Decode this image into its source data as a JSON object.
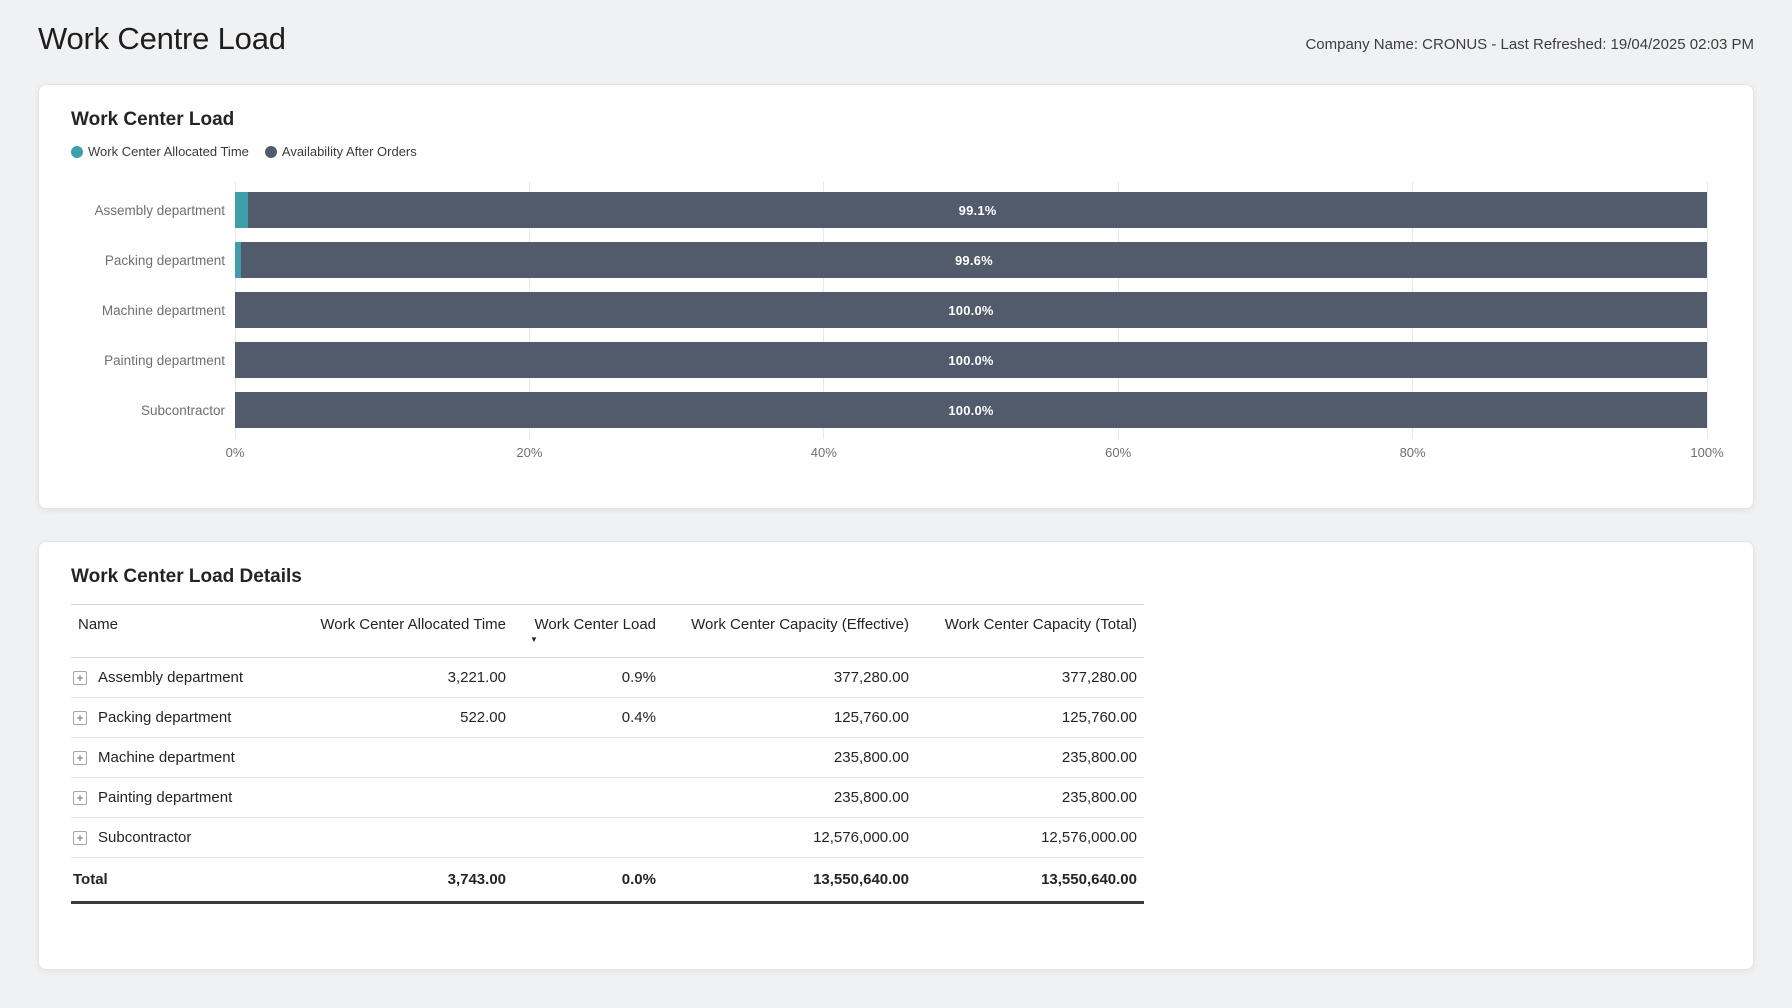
{
  "page": {
    "title": "Work Centre Load",
    "meta": "Company Name: CRONUS - Last Refreshed: 19/04/2025 02:03 PM"
  },
  "colors": {
    "allocated": "#3E9FAA",
    "availability": "#525B6B",
    "page_background": "#F0F1F3",
    "card_background": "#FFFFFF"
  },
  "chart_card": {
    "title": "Work Center Load",
    "legend": [
      {
        "label": "Work Center Allocated Time",
        "color": "#3E9FAA"
      },
      {
        "label": "Availability After Orders",
        "color": "#525B6B"
      }
    ]
  },
  "chart_data": {
    "type": "bar",
    "orientation": "horizontal",
    "stacked": true,
    "title": "Work Center Load",
    "categories": [
      "Assembly department",
      "Packing department",
      "Machine department",
      "Painting department",
      "Subcontractor"
    ],
    "series": [
      {
        "name": "Work Center Allocated Time",
        "color": "#3E9FAA",
        "values": [
          0.9,
          0.4,
          0.0,
          0.0,
          0.0
        ]
      },
      {
        "name": "Availability After Orders",
        "color": "#525B6B",
        "values": [
          99.1,
          99.6,
          100.0,
          100.0,
          100.0
        ]
      }
    ],
    "bar_labels": [
      "99.1%",
      "99.6%",
      "100.0%",
      "100.0%",
      "100.0%"
    ],
    "x_ticks": [
      "0%",
      "20%",
      "40%",
      "60%",
      "80%",
      "100%"
    ],
    "xlim": [
      0,
      100
    ],
    "xlabel": "",
    "ylabel": "",
    "grid": true,
    "legend_position": "top-left"
  },
  "details_card": {
    "title": "Work Center Load Details",
    "columns": [
      {
        "label": "Name",
        "align": "left"
      },
      {
        "label": "Work Center Allocated Time",
        "align": "right"
      },
      {
        "label": "Work Center Load",
        "align": "right",
        "sorted": "desc"
      },
      {
        "label": "Work Center Capacity (Effective)",
        "align": "right"
      },
      {
        "label": "Work Center Capacity (Total)",
        "align": "right"
      }
    ],
    "rows": [
      {
        "name": "Assembly department",
        "cells": [
          "3,221.00",
          "0.9%",
          "377,280.00",
          "377,280.00"
        ]
      },
      {
        "name": "Packing department",
        "cells": [
          "522.00",
          "0.4%",
          "125,760.00",
          "125,760.00"
        ]
      },
      {
        "name": "Machine department",
        "cells": [
          "",
          "",
          "235,800.00",
          "235,800.00"
        ]
      },
      {
        "name": "Painting department",
        "cells": [
          "",
          "",
          "235,800.00",
          "235,800.00"
        ]
      },
      {
        "name": "Subcontractor",
        "cells": [
          "",
          "",
          "12,576,000.00",
          "12,576,000.00"
        ]
      }
    ],
    "total": {
      "name": "Total",
      "cells": [
        "3,743.00",
        "0.0%",
        "13,550,640.00",
        "13,550,640.00"
      ]
    }
  }
}
